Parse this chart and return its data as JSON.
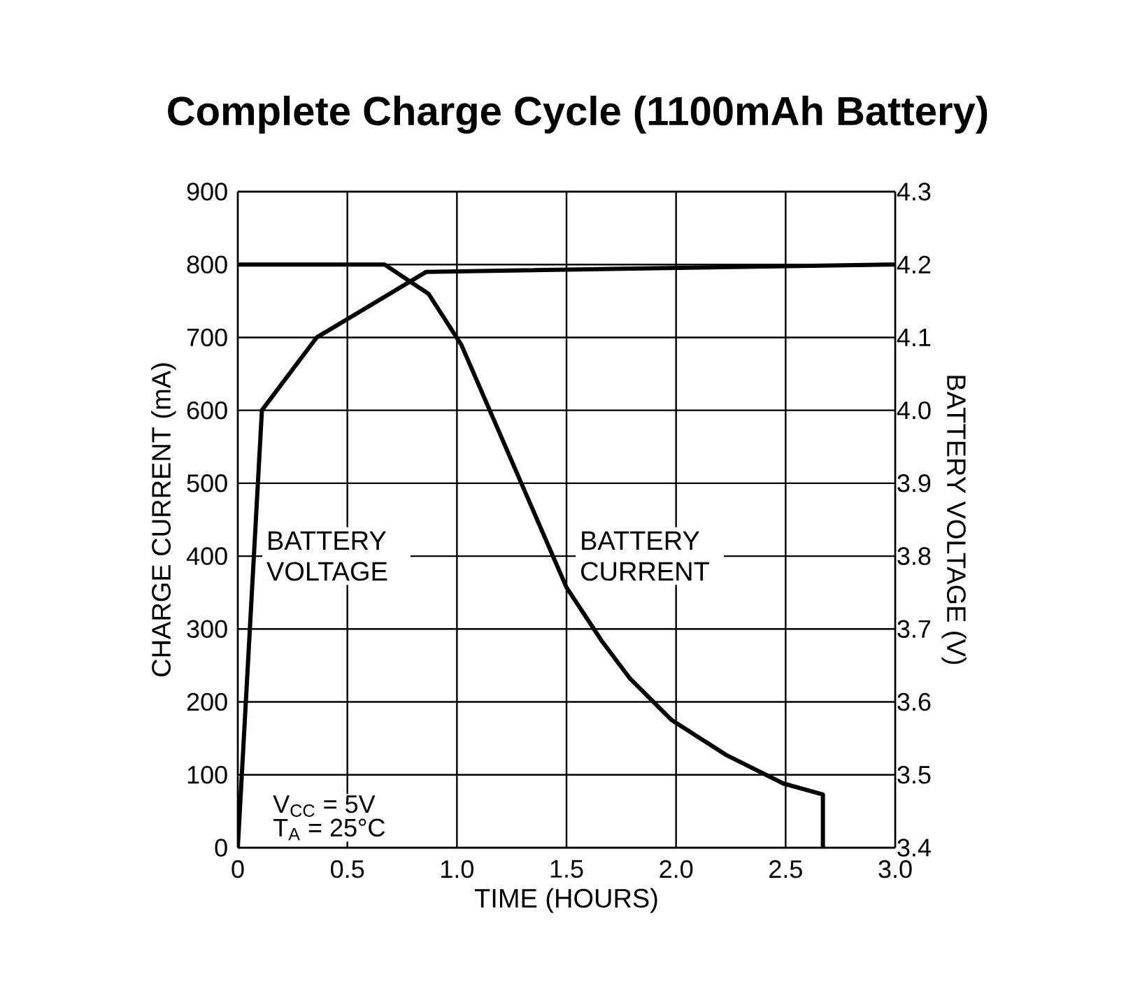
{
  "chart_data": {
    "type": "line",
    "title": "Complete Charge Cycle (1100mAh Battery)",
    "xlabel": "TIME (HOURS)",
    "ylabel": "CHARGE CURRENT (mA)",
    "y2label": "BATTERY VOLTAGE (V)",
    "xlim": [
      0,
      3
    ],
    "xticks": [
      0,
      0.5,
      {
        "value": 1,
        "label": "1.0"
      },
      1.5,
      {
        "value": 2,
        "label": "2.0"
      },
      2.5,
      {
        "value": 3,
        "label": "3.0"
      }
    ],
    "ylim": [
      0,
      900
    ],
    "yticks": [
      0,
      100,
      200,
      300,
      400,
      500,
      600,
      700,
      800,
      900
    ],
    "y2lim": [
      3.4,
      4.3
    ],
    "y2ticks": [
      3.4,
      3.5,
      3.6,
      3.7,
      3.8,
      3.9,
      {
        "value": 4,
        "label": "4.0"
      },
      4.1,
      4.2,
      4.3
    ],
    "grid": true,
    "series": [
      {
        "name": "BATTERY CURRENT",
        "color": "#000000",
        "x": [
          0,
          0.67,
          0.87,
          1.02,
          1.5,
          1.66,
          1.79,
          1.98,
          2.23,
          2.49,
          2.67,
          2.67
        ],
        "values": [
          800,
          800,
          760,
          690,
          357,
          284,
          232,
          175,
          127,
          88,
          73,
          0
        ]
      },
      {
        "name": "BATTERY VOLTAGE",
        "color": "#000000",
        "axis": "y2",
        "x": [
          0,
          0.11,
          0.36,
          0.86,
          3.0
        ],
        "values": [
          3.4,
          4.0,
          4.1,
          4.19,
          4.2
        ]
      }
    ],
    "annotations": [
      "V$_{CC}$ = 5V",
      "T$_{A}$ = 25°C"
    ]
  }
}
